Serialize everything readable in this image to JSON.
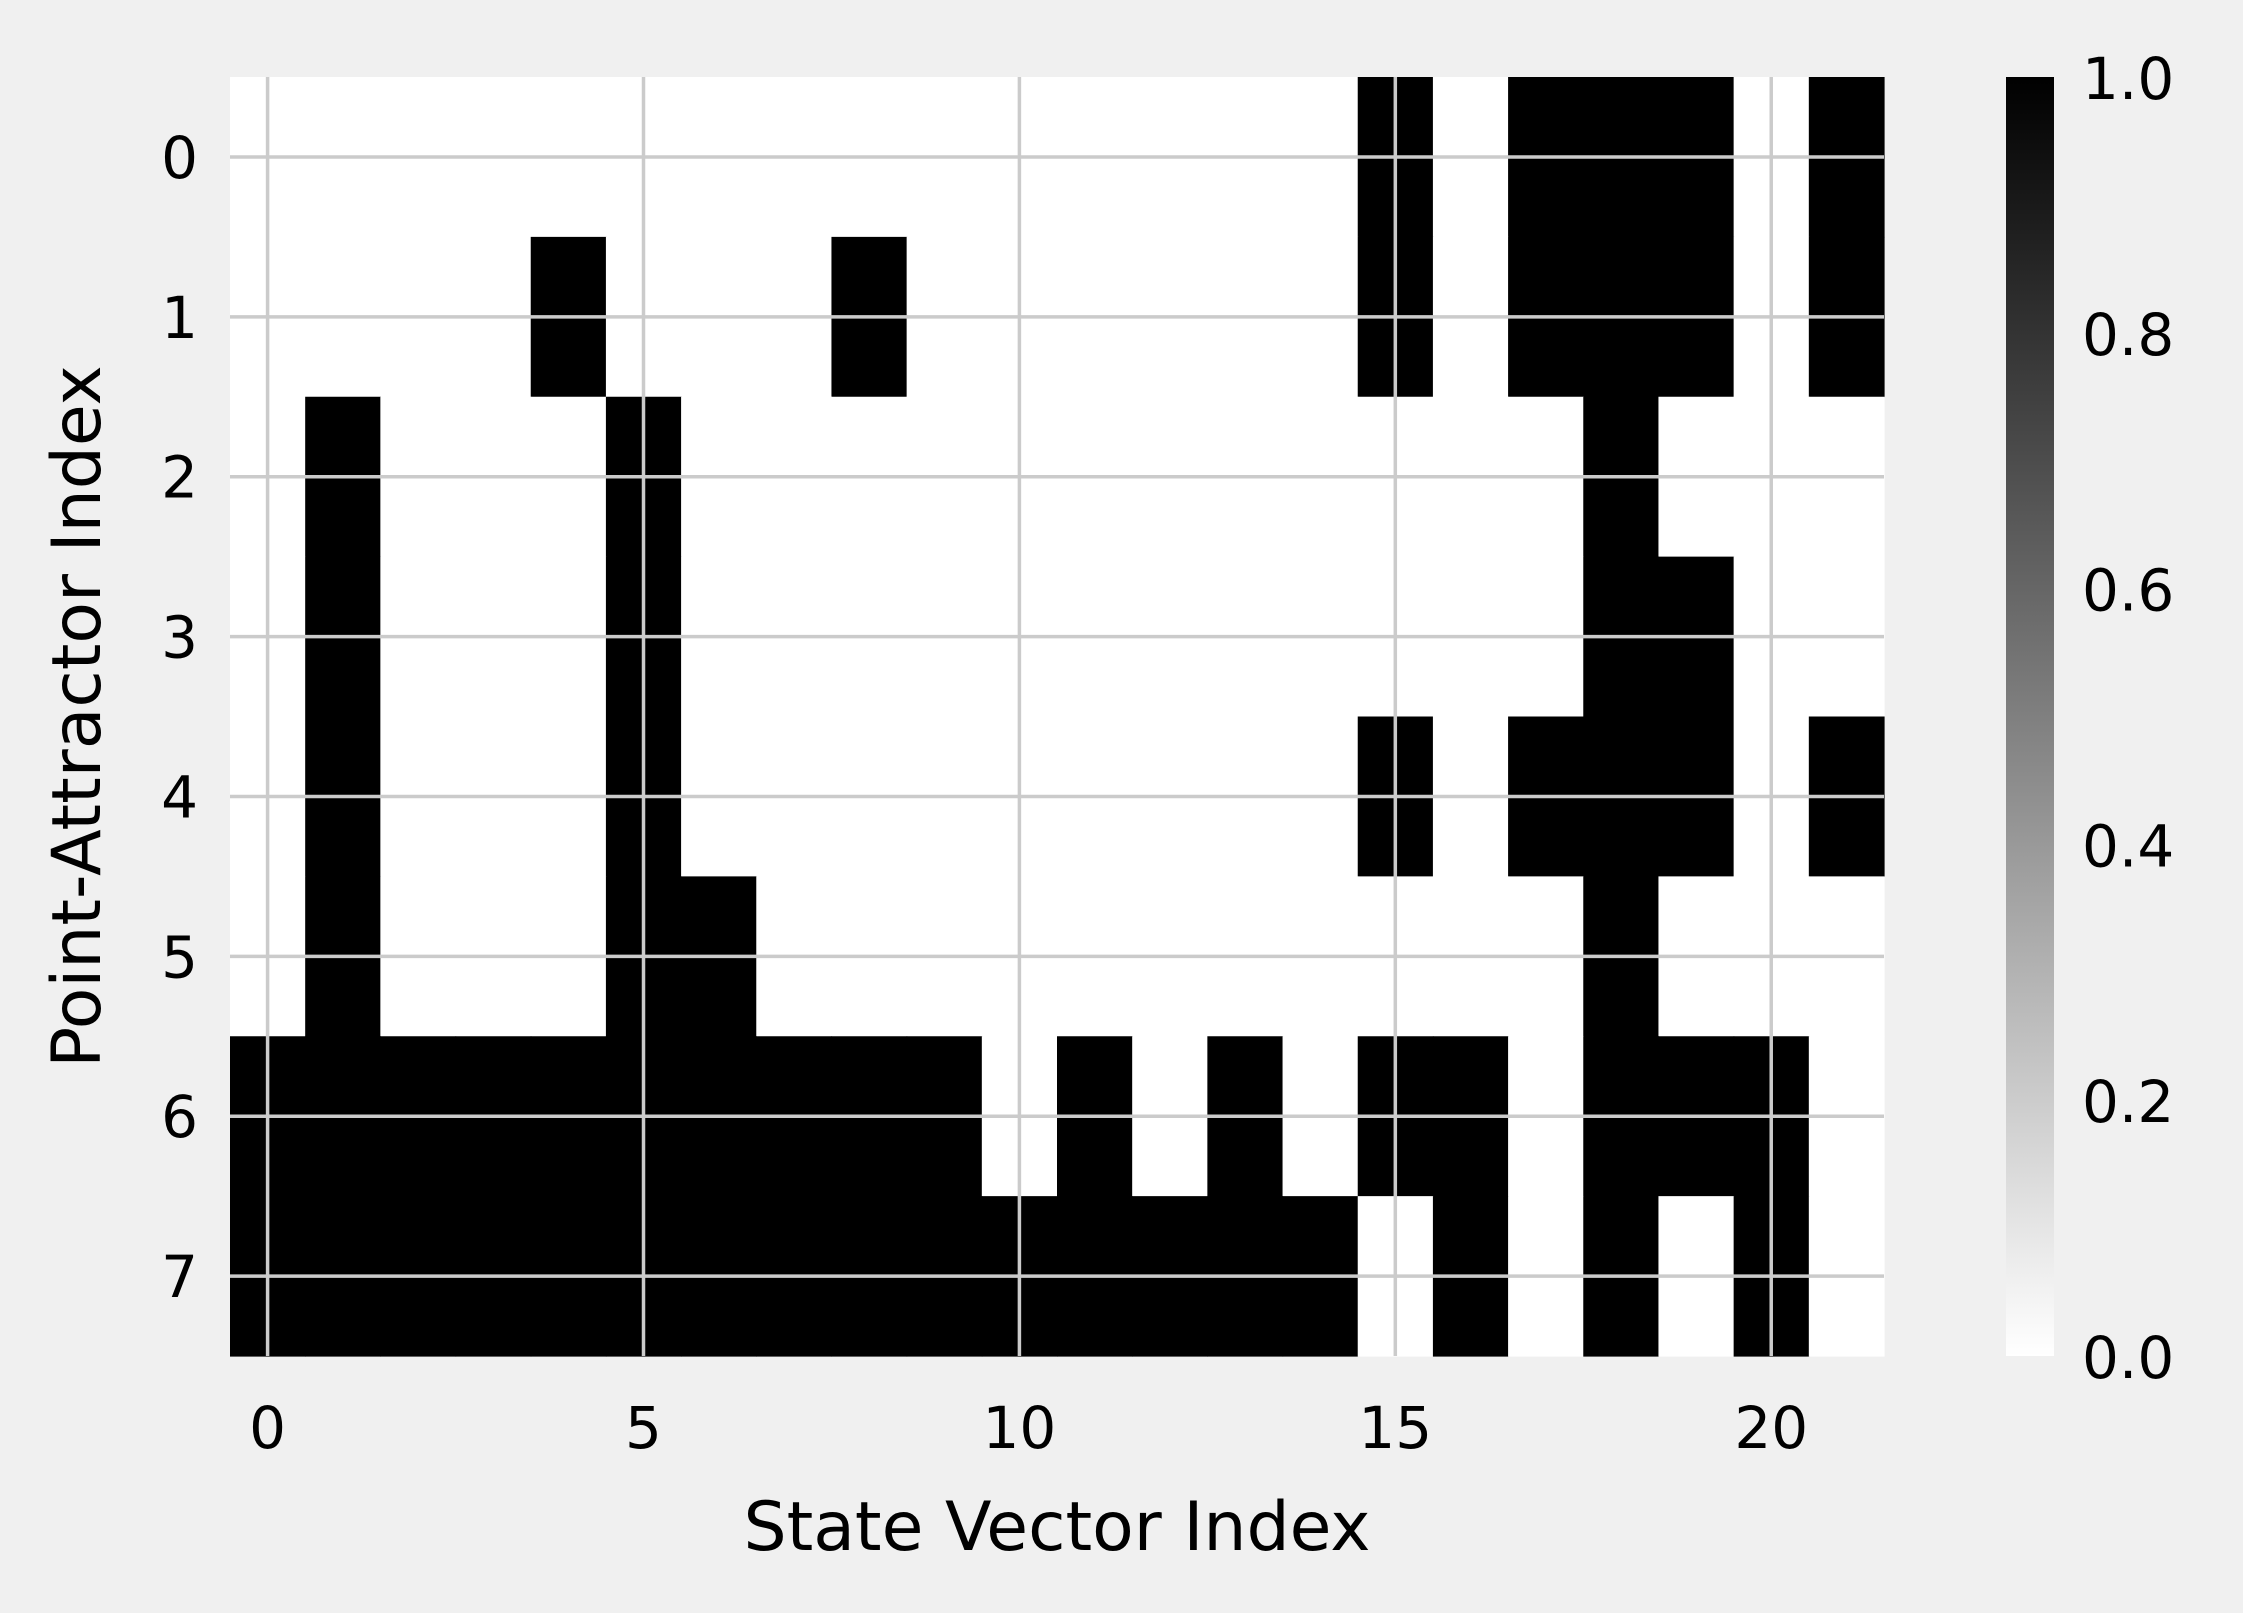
{
  "chart_data": {
    "type": "heatmap",
    "title": "",
    "xlabel": "State Vector Index",
    "ylabel": "Point-Attractor Index",
    "x_ticks": [
      0,
      5,
      10,
      15,
      20
    ],
    "y_ticks": [
      0,
      1,
      2,
      3,
      4,
      5,
      6,
      7
    ],
    "xlim": [
      -0.5,
      21.5
    ],
    "ylim": [
      7.5,
      -0.5
    ],
    "grid": true,
    "colormap": "white-to-black",
    "colorbar": {
      "min": 0.0,
      "max": 1.0,
      "ticks": [
        "0.0",
        "0.2",
        "0.4",
        "0.6",
        "0.8",
        "1.0"
      ]
    },
    "matrix": [
      [
        0,
        0,
        0,
        0,
        0,
        0,
        0,
        0,
        0,
        0,
        0,
        0,
        0,
        0,
        0,
        1,
        0,
        1,
        1,
        1,
        0,
        1
      ],
      [
        0,
        0,
        0,
        0,
        1,
        0,
        0,
        0,
        1,
        0,
        0,
        0,
        0,
        0,
        0,
        1,
        0,
        1,
        1,
        1,
        0,
        1
      ],
      [
        0,
        1,
        0,
        0,
        0,
        1,
        0,
        0,
        0,
        0,
        0,
        0,
        0,
        0,
        0,
        0,
        0,
        0,
        1,
        0,
        0,
        0
      ],
      [
        0,
        1,
        0,
        0,
        0,
        1,
        0,
        0,
        0,
        0,
        0,
        0,
        0,
        0,
        0,
        0,
        0,
        0,
        1,
        1,
        0,
        0
      ],
      [
        0,
        1,
        0,
        0,
        0,
        1,
        0,
        0,
        0,
        0,
        0,
        0,
        0,
        0,
        0,
        1,
        0,
        1,
        1,
        1,
        0,
        1
      ],
      [
        0,
        1,
        0,
        0,
        0,
        1,
        1,
        0,
        0,
        0,
        0,
        0,
        0,
        0,
        0,
        0,
        0,
        0,
        1,
        0,
        0,
        0
      ],
      [
        1,
        1,
        1,
        1,
        1,
        1,
        1,
        1,
        1,
        1,
        0,
        1,
        0,
        1,
        0,
        1,
        1,
        0,
        1,
        1,
        1,
        0
      ],
      [
        1,
        1,
        1,
        1,
        1,
        1,
        1,
        1,
        1,
        1,
        1,
        1,
        1,
        1,
        1,
        0,
        1,
        0,
        1,
        0,
        1,
        0
      ]
    ],
    "colors": {
      "background": "#f0f0f0",
      "cell_on": "#000000",
      "cell_off": "#ffffff",
      "grid": "#cbcbcb"
    }
  }
}
